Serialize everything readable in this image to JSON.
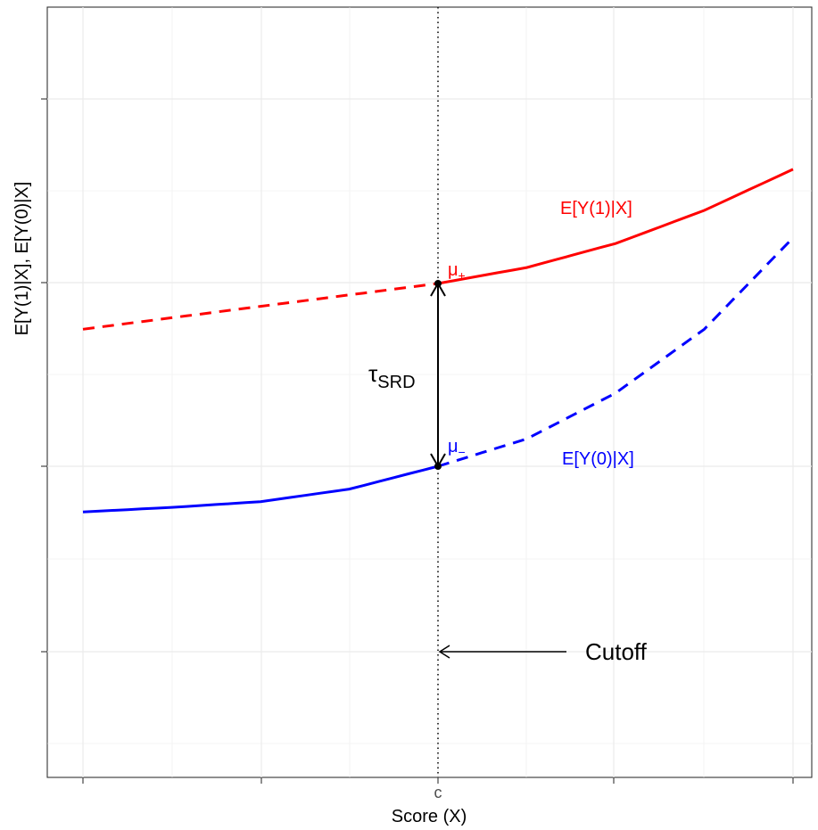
{
  "chart_data": {
    "type": "line",
    "xlabel": "Score (X)",
    "ylabel": "E[Y(1)|X], E[Y(0)|X]",
    "x_tick_labels": [
      "",
      "",
      "c",
      "",
      ""
    ],
    "grid": true,
    "cutoff_label": "Cutoff",
    "series": [
      {
        "name": "E[Y(1)|X]",
        "color": "#ff0000",
        "points_dashed": [
          [
            -1.0,
            0.5
          ],
          [
            -0.75,
            0.55
          ],
          [
            -0.5,
            0.6
          ],
          [
            -0.25,
            0.65
          ],
          [
            0.0,
            0.7
          ]
        ],
        "points_solid": [
          [
            0.0,
            0.7
          ],
          [
            0.25,
            0.77
          ],
          [
            0.5,
            0.875
          ],
          [
            0.75,
            1.02
          ],
          [
            1.0,
            1.2
          ]
        ]
      },
      {
        "name": "E[Y(0)|X]",
        "color": "#0000ff",
        "points_solid": [
          [
            -1.0,
            -0.3
          ],
          [
            -0.75,
            -0.28
          ],
          [
            -0.5,
            -0.255
          ],
          [
            -0.25,
            -0.2
          ],
          [
            0.0,
            -0.1
          ]
        ],
        "points_dashed": [
          [
            0.0,
            -0.1
          ],
          [
            0.25,
            0.02
          ],
          [
            0.5,
            0.22
          ],
          [
            0.75,
            0.5
          ],
          [
            1.0,
            0.9
          ]
        ]
      }
    ],
    "annotations": {
      "mu_plus": "μ",
      "mu_plus_sub": "+",
      "mu_minus": "μ",
      "mu_minus_sub": "−",
      "tau": "τ",
      "tau_sub": "SRD"
    }
  }
}
